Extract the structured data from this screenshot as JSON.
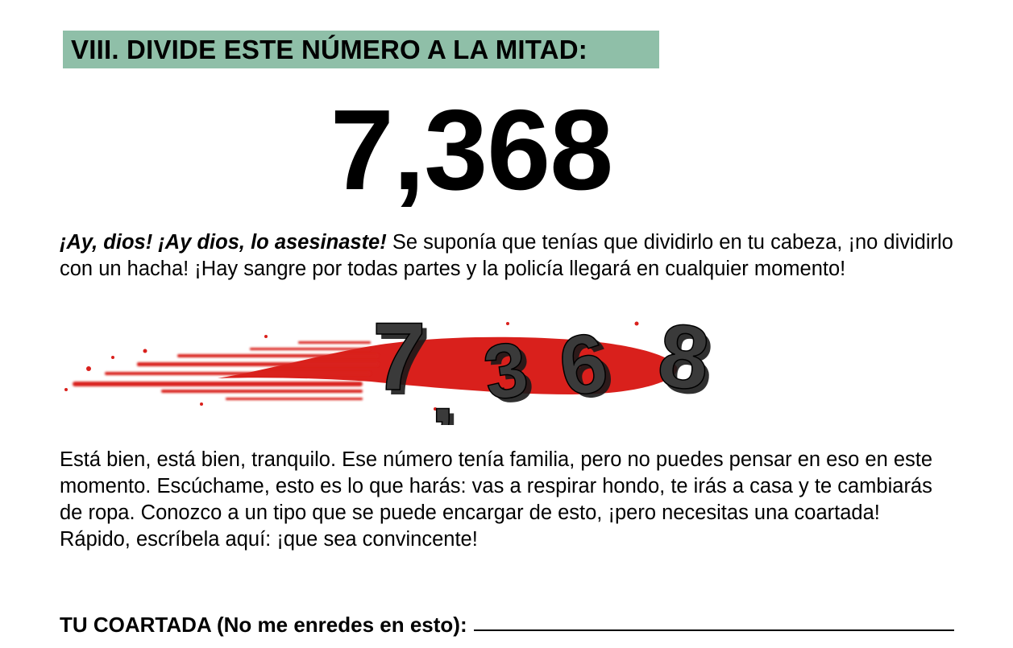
{
  "section": {
    "header": "VIII. DIVIDE ESTE NÚMERO A LA MITAD:"
  },
  "puzzle": {
    "number": "7,368"
  },
  "intro": {
    "lead": "¡Ay, dios! ¡Ay dios, lo asesinaste!",
    "rest": " Se suponía que tenías que dividirlo en tu cabeza, ¡no dividirlo con un hacha! ¡Hay sangre por todas partes y la policía llegará en cualquier momento!"
  },
  "illustration": {
    "accent_color": "#d9201c",
    "digits": [
      "7",
      ",",
      "3",
      "6",
      "8"
    ]
  },
  "followup": {
    "text": "Está bien, está bien, tranquilo. Ese número tenía familia, pero no puedes pensar en eso en este momento. Escúchame, esto es lo que harás: vas a respirar hondo, te irás a casa y te cambiarás de ropa. Conozco a un tipo que se puede encargar de esto, ¡pero necesitas una coartada! Rápido, escríbela aquí: ¡que sea convincente!"
  },
  "alibi": {
    "label": "TU COARTADA  (No me enredes en esto):"
  }
}
